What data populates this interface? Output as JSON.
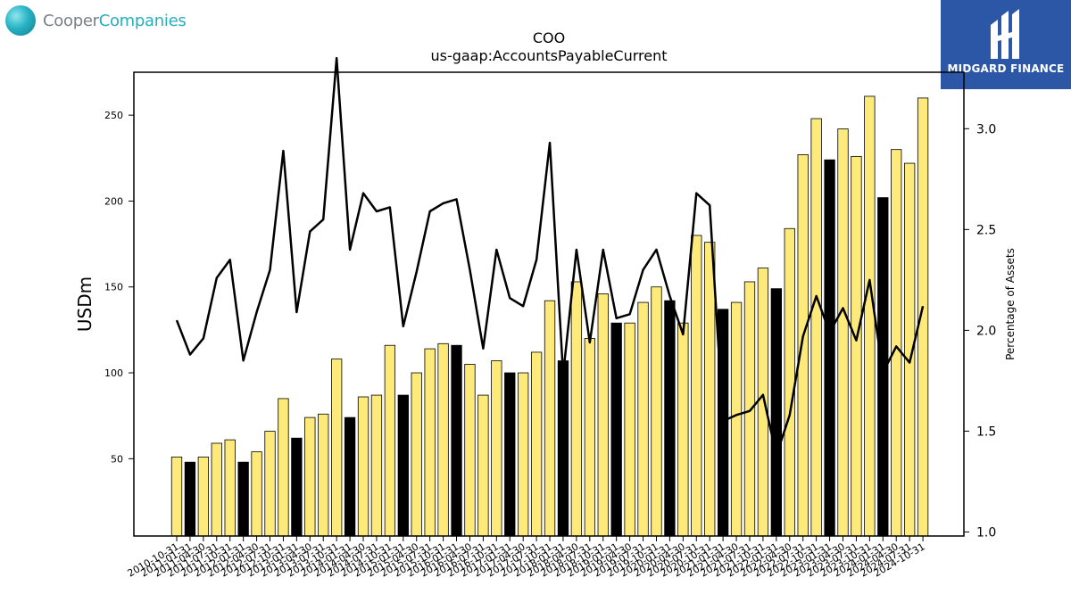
{
  "brand_left": {
    "word1": "Cooper",
    "word2": "Companies",
    "icon": "cooper-logo-icon"
  },
  "brand_right": {
    "text": "MIDGARD FINANCE",
    "icon": "midgard-logo-icon",
    "background": "#2b57a6"
  },
  "chart_data": {
    "type": "bar",
    "title": "COO",
    "subtitle": "us-gaap:AccountsPayableCurrent",
    "ylabel": "USDm",
    "y2label": "Percentage of Assets",
    "ylim": [
      5,
      275
    ],
    "y2lim": [
      0.98,
      3.28
    ],
    "yticks": [
      50,
      100,
      150,
      200,
      250
    ],
    "y2ticks": [
      "1.0",
      "1.5",
      "2.0",
      "2.5",
      "3.0"
    ],
    "bar_colors": {
      "quarter": "#fdea7a",
      "fiscal_year_end": "#000000"
    },
    "line_color": "#000000",
    "categories": [
      "2010-10-31",
      "2011-01-31",
      "2011-04-30",
      "2011-07-31",
      "2011-10-31",
      "2012-01-31",
      "2012-04-30",
      "2012-07-31",
      "2012-10-31",
      "2013-01-31",
      "2013-04-30",
      "2013-07-31",
      "2013-10-31",
      "2014-01-31",
      "2014-04-30",
      "2014-07-31",
      "2014-10-31",
      "2015-01-31",
      "2015-04-30",
      "2015-07-31",
      "2015-10-31",
      "2016-01-31",
      "2016-04-30",
      "2016-07-31",
      "2016-10-31",
      "2017-01-31",
      "2017-04-30",
      "2017-07-31",
      "2017-10-31",
      "2018-01-31",
      "2018-04-30",
      "2018-07-31",
      "2018-10-31",
      "2019-01-31",
      "2019-04-30",
      "2019-07-31",
      "2019-10-31",
      "2020-01-31",
      "2020-04-30",
      "2020-07-31",
      "2020-10-31",
      "2021-01-31",
      "2021-04-30",
      "2021-07-31",
      "2021-10-31",
      "2022-01-31",
      "2022-04-30",
      "2022-07-31",
      "2022-10-31",
      "2023-01-31",
      "2023-04-30",
      "2023-07-31",
      "2023-10-31",
      "2024-01-31",
      "2024-04-30",
      "2024-07-31",
      "2024-10-31"
    ],
    "series": [
      {
        "type": "bar",
        "values": [
          51,
          48,
          51,
          59,
          61,
          48,
          54,
          66,
          85,
          62,
          74,
          76,
          108,
          74,
          86,
          87,
          116,
          87,
          100,
          114,
          117,
          116,
          105,
          87,
          107,
          100,
          100,
          112,
          142,
          107,
          153,
          120,
          146,
          129,
          129,
          141,
          150,
          142,
          129,
          180,
          176,
          137,
          141,
          153,
          161,
          149,
          184,
          227,
          248,
          224,
          242,
          226,
          261,
          202,
          230,
          222,
          260
        ],
        "fiscal_year_end": [
          false,
          true,
          false,
          false,
          false,
          true,
          false,
          false,
          false,
          true,
          false,
          false,
          false,
          true,
          false,
          false,
          false,
          true,
          false,
          false,
          false,
          true,
          false,
          false,
          false,
          true,
          false,
          false,
          false,
          true,
          false,
          false,
          false,
          true,
          false,
          false,
          false,
          true,
          false,
          false,
          false,
          true,
          false,
          false,
          false,
          true,
          false,
          false,
          false,
          true,
          false,
          false,
          false,
          true,
          false,
          false,
          false
        ]
      },
      {
        "type": "line",
        "axis": "right",
        "values": [
          2.05,
          1.88,
          1.96,
          2.26,
          2.35,
          1.85,
          2.09,
          2.3,
          2.89,
          2.09,
          2.49,
          2.55,
          3.35,
          2.4,
          2.68,
          2.59,
          2.61,
          2.02,
          2.29,
          2.59,
          2.63,
          2.65,
          2.3,
          1.91,
          2.4,
          2.16,
          2.12,
          2.35,
          2.93,
          1.78,
          2.4,
          1.94,
          2.4,
          2.06,
          2.08,
          2.3,
          2.4,
          2.17,
          1.98,
          2.68,
          2.62,
          1.55,
          1.58,
          1.6,
          1.68,
          1.38,
          1.58,
          1.97,
          2.17,
          1.99,
          2.11,
          1.95,
          2.25,
          1.79,
          1.92,
          1.84,
          2.12
        ]
      }
    ]
  }
}
